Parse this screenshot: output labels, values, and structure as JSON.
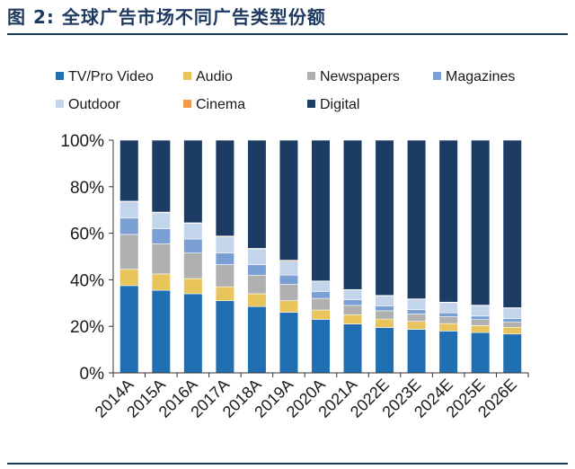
{
  "figure": {
    "title": "图 2:  全球广告市场不同广告类型份额"
  },
  "colors": {
    "rule": "#1f3a60",
    "axis": "#333333"
  },
  "chart_data": {
    "type": "bar",
    "stacked": true,
    "title": "",
    "xlabel": "",
    "ylabel": "",
    "ylim": [
      0,
      100
    ],
    "ytick_values": [
      0,
      20,
      40,
      60,
      80,
      100
    ],
    "ytick_labels": [
      "0%",
      "20%",
      "40%",
      "60%",
      "80%",
      "100%"
    ],
    "grid": false,
    "legend_position": "top",
    "categories": [
      "2014A",
      "2015A",
      "2016A",
      "2017A",
      "2018A",
      "2019A",
      "2020A",
      "2021A",
      "2022E",
      "2023E",
      "2024E",
      "2025E",
      "2026E"
    ],
    "series": [
      {
        "name": "TV/Pro Video",
        "color": "#1f6fb2",
        "values": [
          37.5,
          35.5,
          34,
          31,
          28.5,
          26,
          23,
          21,
          19.5,
          18.7,
          18,
          17.3,
          16.7
        ]
      },
      {
        "name": "Audio",
        "color": "#e8c45a",
        "values": [
          7,
          7,
          6.5,
          6,
          5.5,
          5,
          4,
          4,
          3.6,
          3.4,
          3.2,
          3,
          2.9
        ]
      },
      {
        "name": "Newspapers",
        "color": "#b0b0b0",
        "values": [
          15,
          13,
          11,
          9.5,
          8,
          7,
          5,
          4,
          3.6,
          3.2,
          2.9,
          2.6,
          2.3
        ]
      },
      {
        "name": "Magazines",
        "color": "#7a9fd4",
        "values": [
          7,
          6.5,
          6,
          5,
          4.5,
          4,
          3,
          2.4,
          2.1,
          1.9,
          1.7,
          1.5,
          1.4
        ]
      },
      {
        "name": "Outdoor",
        "color": "#c3d5ea",
        "values": [
          7,
          6.8,
          6.7,
          7,
          6.7,
          6,
          4.4,
          4.3,
          4.3,
          4.4,
          4.4,
          4.5,
          4.5
        ]
      },
      {
        "name": "Cinema",
        "color": "#f39a4a",
        "values": [
          0.3,
          0.3,
          0.3,
          0.3,
          0.3,
          0.4,
          0.1,
          0.1,
          0.2,
          0.2,
          0.2,
          0.2,
          0.2
        ]
      },
      {
        "name": "Digital",
        "color": "#1d3c63",
        "values": [
          26.2,
          30.9,
          35.5,
          41.2,
          46.5,
          51.6,
          60.5,
          64.2,
          66.7,
          68.2,
          69.6,
          70.9,
          72
        ]
      }
    ]
  }
}
